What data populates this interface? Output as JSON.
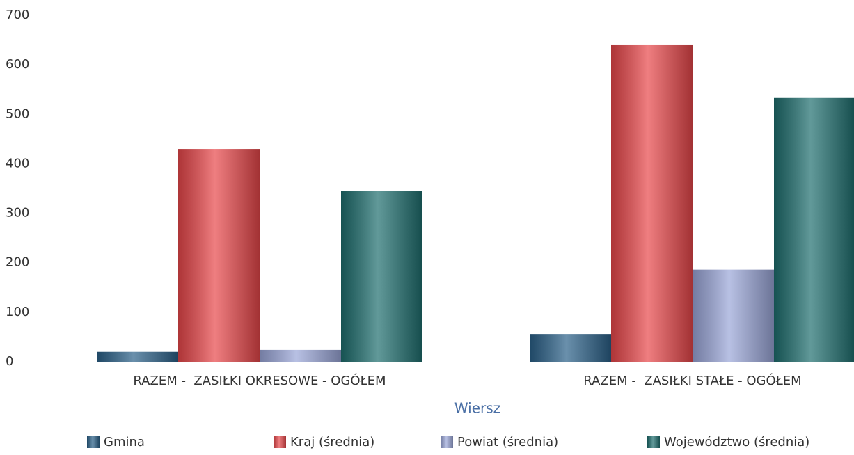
{
  "chart_data": {
    "type": "bar",
    "categories": [
      "RAZEM -  ZASIŁKI OKRESOWE - OGÓŁEM",
      "RAZEM -  ZASIŁKI STAŁE - OGÓŁEM"
    ],
    "series": [
      {
        "name": "Gmina",
        "color": "#2a6088",
        "values": [
          20,
          56
        ]
      },
      {
        "name": "Kraj (średnia)",
        "color": "#e8474a",
        "values": [
          430,
          641
        ]
      },
      {
        "name": "Powiat (średnia)",
        "color": "#9aa6d8",
        "values": [
          24,
          186
        ]
      },
      {
        "name": "Województwo (średnia)",
        "color": "#1e6e6e",
        "values": [
          345,
          533
        ]
      }
    ],
    "x_label": "Wiersz",
    "ylim": [
      0,
      700
    ],
    "yticks": [
      0,
      100,
      200,
      300,
      400,
      500,
      600,
      700
    ],
    "grid": false,
    "legend": "bottom"
  }
}
